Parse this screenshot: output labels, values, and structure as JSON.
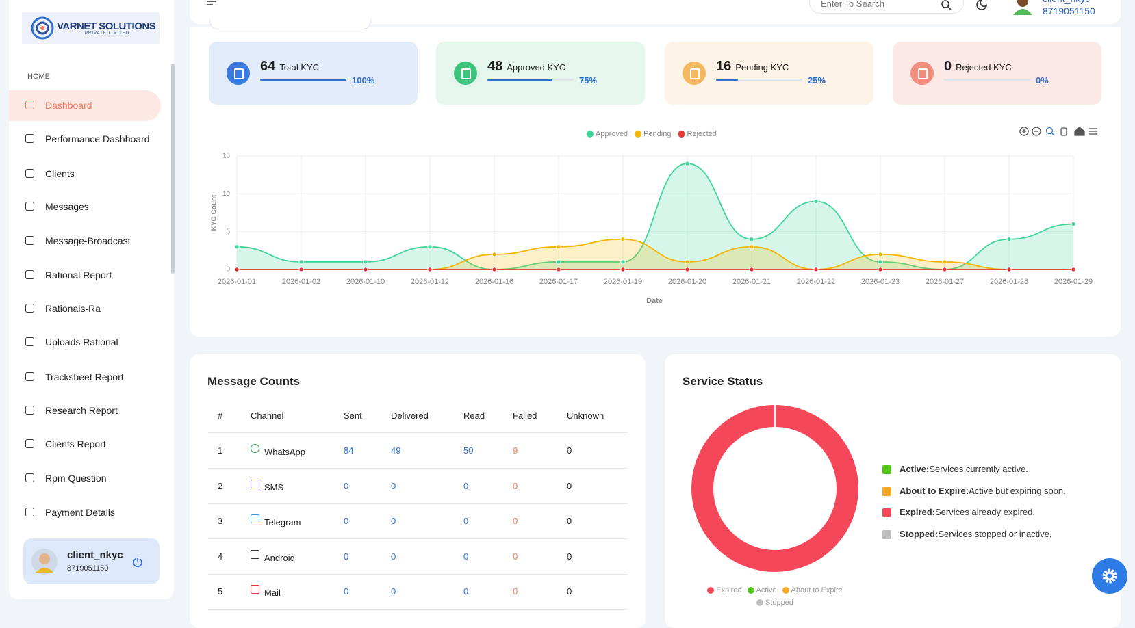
{
  "sidebar": {
    "logo": "VARNET SOLUTIONS",
    "logo_tagline": "PRIVATE LIMITED",
    "section": "HOME",
    "active_item": 0,
    "items": [
      "Dashboard",
      "Performance Dashboard",
      "Clients",
      "Messages",
      "Message-Broadcast",
      "Rational Report",
      "Rationals-Ra",
      "Uploads Rational",
      "Tracksheet Report",
      "Research Report",
      "Clients Report",
      "Rpm Question",
      "Payment Details"
    ],
    "user_name": "client_nkyc",
    "user_phone": "8719051150"
  },
  "header": {
    "search_placeholder": "Enter To Search",
    "user_name": "client_nkyc",
    "user_phone": "8719051150"
  },
  "kyc_cards": [
    {
      "count": 64,
      "label": "Total KYC",
      "progress": 100,
      "progress_label": "100%"
    },
    {
      "count": 48,
      "label": "Approved KYC",
      "progress": 75,
      "progress_label": "75%"
    },
    {
      "count": 16,
      "label": "Pending KYC",
      "progress": 25,
      "progress_label": "25%"
    },
    {
      "count": 0,
      "label": "Rejected KYC",
      "progress": 0,
      "progress_label": "0%"
    }
  ],
  "message_counts": {
    "title": "Message Counts",
    "columns": [
      "#",
      "Channel",
      "Sent",
      "Delivered",
      "Read",
      "Failed",
      "Unknown"
    ],
    "rows": [
      [
        1,
        "WhatsApp",
        84,
        49,
        50,
        9,
        0
      ],
      [
        2,
        "SMS",
        0,
        0,
        0,
        0,
        0
      ],
      [
        3,
        "Telegram",
        0,
        0,
        0,
        0,
        0
      ],
      [
        4,
        "Android",
        0,
        0,
        0,
        0,
        0
      ],
      [
        5,
        "Mail",
        0,
        0,
        0,
        0,
        0
      ]
    ]
  },
  "service_status": {
    "legend": [
      {
        "label": "Active:",
        "text": "Services currently active.",
        "color": "#52c41a"
      },
      {
        "label": "About to Expire:",
        "text": "Active but expiring soon.",
        "color": "#f5a623"
      },
      {
        "label": "Expired:",
        "text": "Services already expired.",
        "color": "#f5475a"
      },
      {
        "label": "Stopped:",
        "text": "Services stopped or inactive.",
        "color": "#bdbdbd"
      }
    ]
  },
  "chart_data": [
    {
      "type": "line",
      "xlabel": "Date",
      "ylabel": "KYC Count",
      "grid": true,
      "legend": "top",
      "categories": [
        "2026-01-01",
        "2026-01-02",
        "2026-01-10",
        "2026-01-12",
        "2026-01-16",
        "2026-01-17",
        "2026-01-19",
        "2026-01-20",
        "2026-01-21",
        "2026-01-22",
        "2026-01-23",
        "2026-01-27",
        "2026-01-28",
        "2026-01-29"
      ],
      "series": [
        {
          "name": "Approved",
          "color": "#3ed598",
          "values": [
            3,
            1,
            1,
            3,
            0,
            1,
            1,
            14,
            4,
            9,
            1,
            0,
            4,
            6
          ]
        },
        {
          "name": "Pending",
          "color": "#f4b400",
          "values": [
            0,
            0,
            0,
            0,
            2,
            3,
            4,
            1,
            3,
            0,
            2,
            1,
            0,
            0
          ]
        },
        {
          "name": "Rejected",
          "color": "#e53935",
          "values": [
            0,
            0,
            0,
            0,
            0,
            0,
            0,
            0,
            0,
            0,
            0,
            0,
            0,
            0
          ]
        }
      ],
      "ylim": [
        0,
        15
      ],
      "yticks": [
        0,
        5,
        10,
        15
      ]
    },
    {
      "type": "donut",
      "title": "Service Status",
      "categories": [
        "Expired",
        "Active",
        "About to Expire",
        "Stopped"
      ],
      "values": [
        1,
        0,
        0,
        0
      ],
      "colors": [
        "#f5475a",
        "#52c41a",
        "#f5a623",
        "#bdbdbd"
      ]
    }
  ]
}
